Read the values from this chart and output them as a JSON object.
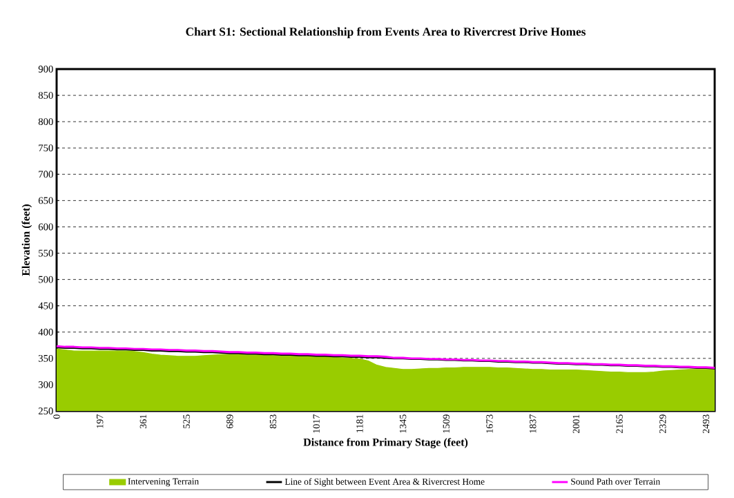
{
  "chart_data": {
    "type": "area",
    "title": "Chart S1: Sectional Relationship from Events Area to Rivercrest Drive Homes",
    "xlabel": "Distance from Primary Stage (feet)",
    "ylabel": "Elevation (feet)",
    "categories": [
      "0",
      null,
      null,
      null,
      null,
      "197",
      null,
      null,
      null,
      null,
      "361",
      null,
      null,
      null,
      null,
      "525",
      null,
      null,
      null,
      null,
      "689",
      null,
      null,
      null,
      null,
      "853",
      null,
      null,
      null,
      null,
      "1017",
      null,
      null,
      null,
      null,
      "1181",
      null,
      null,
      null,
      null,
      "1345",
      null,
      null,
      null,
      null,
      "1509",
      null,
      null,
      null,
      null,
      "1673",
      null,
      null,
      null,
      null,
      "1837",
      null,
      null,
      null,
      null,
      "2001",
      null,
      null,
      null,
      null,
      "2165",
      null,
      null,
      null,
      null,
      "2329",
      null,
      null,
      null,
      null,
      "2493",
      null
    ],
    "series": [
      {
        "name": "Intervening Terrain",
        "color": "#99cc00",
        "values": [
          368,
          366,
          364,
          364,
          364,
          364,
          364,
          364,
          364,
          363,
          361,
          358,
          356,
          355,
          354,
          354,
          354,
          355,
          356,
          357,
          357,
          357,
          356,
          356,
          356,
          355,
          355,
          355,
          354,
          354,
          353,
          353,
          352,
          351,
          350,
          349,
          345,
          337,
          333,
          331,
          329,
          329,
          330,
          331,
          331,
          332,
          332,
          333,
          333,
          333,
          333,
          332,
          332,
          331,
          330,
          329,
          329,
          328,
          328,
          328,
          328,
          327,
          326,
          325,
          324,
          324,
          323,
          323,
          323,
          324,
          326,
          327,
          328,
          329,
          329,
          329,
          329
        ]
      },
      {
        "name": "Line of Sight between Event Area & Rivercrest Home",
        "type": "line",
        "color": "#000000",
        "values": [
          371,
          370,
          370,
          369,
          369,
          368,
          368,
          367,
          367,
          366,
          366,
          365,
          365,
          364,
          364,
          363,
          363,
          362,
          362,
          361,
          360,
          360,
          359,
          359,
          358,
          358,
          357,
          357,
          356,
          356,
          355,
          355,
          354,
          354,
          353,
          353,
          352,
          352,
          351,
          350,
          350,
          349,
          349,
          348,
          348,
          347,
          347,
          346,
          346,
          345,
          345,
          344,
          344,
          343,
          343,
          342,
          342,
          341,
          340,
          340,
          339,
          339,
          338,
          338,
          337,
          337,
          336,
          336,
          335,
          335,
          334,
          334,
          333,
          333,
          332,
          332,
          331
        ]
      },
      {
        "name": "Sound Path over Terrain",
        "type": "line",
        "color": "#ff00ff",
        "values": [
          373,
          372,
          372,
          371,
          371,
          370,
          370,
          369,
          369,
          368,
          368,
          367,
          367,
          366,
          366,
          365,
          365,
          364,
          364,
          363,
          362,
          362,
          361,
          361,
          360,
          360,
          359,
          359,
          358,
          358,
          357,
          357,
          356,
          356,
          355,
          355,
          354,
          354,
          353,
          351,
          351,
          350,
          350,
          349,
          349,
          348,
          348,
          347,
          347,
          346,
          346,
          345,
          345,
          344,
          344,
          343,
          343,
          342,
          341,
          341,
          340,
          340,
          339,
          339,
          338,
          338,
          337,
          337,
          336,
          336,
          335,
          335,
          334,
          334,
          333,
          333,
          332
        ]
      }
    ],
    "ylim": [
      250,
      900
    ],
    "yticks": [
      250,
      300,
      350,
      400,
      450,
      500,
      550,
      600,
      650,
      700,
      750,
      800,
      850,
      900
    ],
    "grid": "y",
    "legend": "bottom"
  }
}
